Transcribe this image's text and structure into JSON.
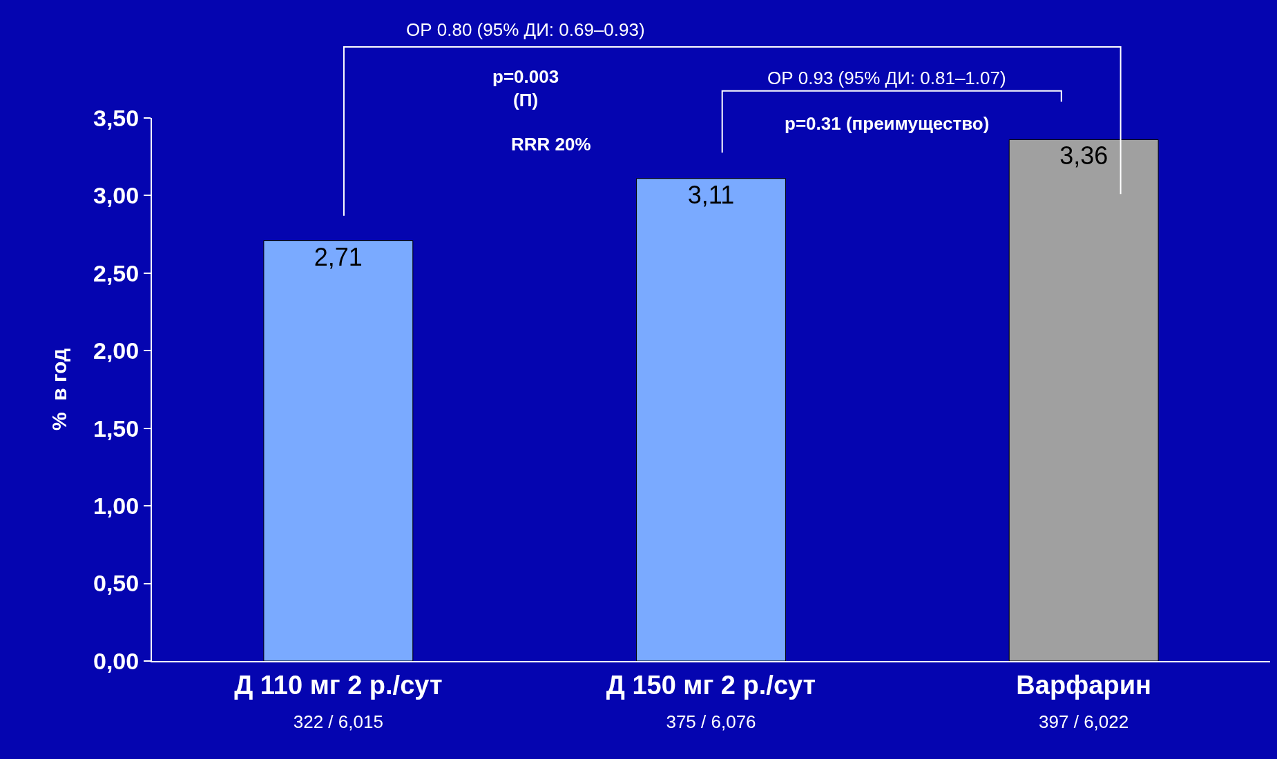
{
  "chart_data": {
    "type": "bar",
    "ylabel": "%  в год",
    "categories": [
      "Д 110 мг 2 р./сут\n322 / 6,015",
      "Д 150 мг 2 р./сут\n375 / 6,076",
      "Варфарин\n397 / 6,022"
    ],
    "values": [
      2.71,
      3.11,
      3.36
    ],
    "value_labels": [
      "2,71",
      "3,11",
      "3,36"
    ],
    "colors": [
      "#7aaaff",
      "#7aaaff",
      "#a0a0a0"
    ],
    "ylim": [
      0,
      3.5
    ],
    "yticks": [
      {
        "value": 0,
        "label": "0,00"
      },
      {
        "value": 0.5,
        "label": "0,50"
      },
      {
        "value": 1,
        "label": "1,00"
      },
      {
        "value": 1.5,
        "label": "1,50"
      },
      {
        "value": 2,
        "label": "2,00"
      },
      {
        "value": 2.5,
        "label": "2,50"
      },
      {
        "value": 3,
        "label": "3,00"
      },
      {
        "value": 3.5,
        "label": "3,50"
      }
    ],
    "grid": false,
    "legend": false,
    "annotations": [
      "ОР 0.80 (95% ДИ: 0.69–0.93)",
      "p=0.003\n(П)",
      "RRR 20%",
      "ОР 0.93 (95% ДИ: 0.81–1.07)",
      "p=0.31 (преимущество)"
    ]
  }
}
